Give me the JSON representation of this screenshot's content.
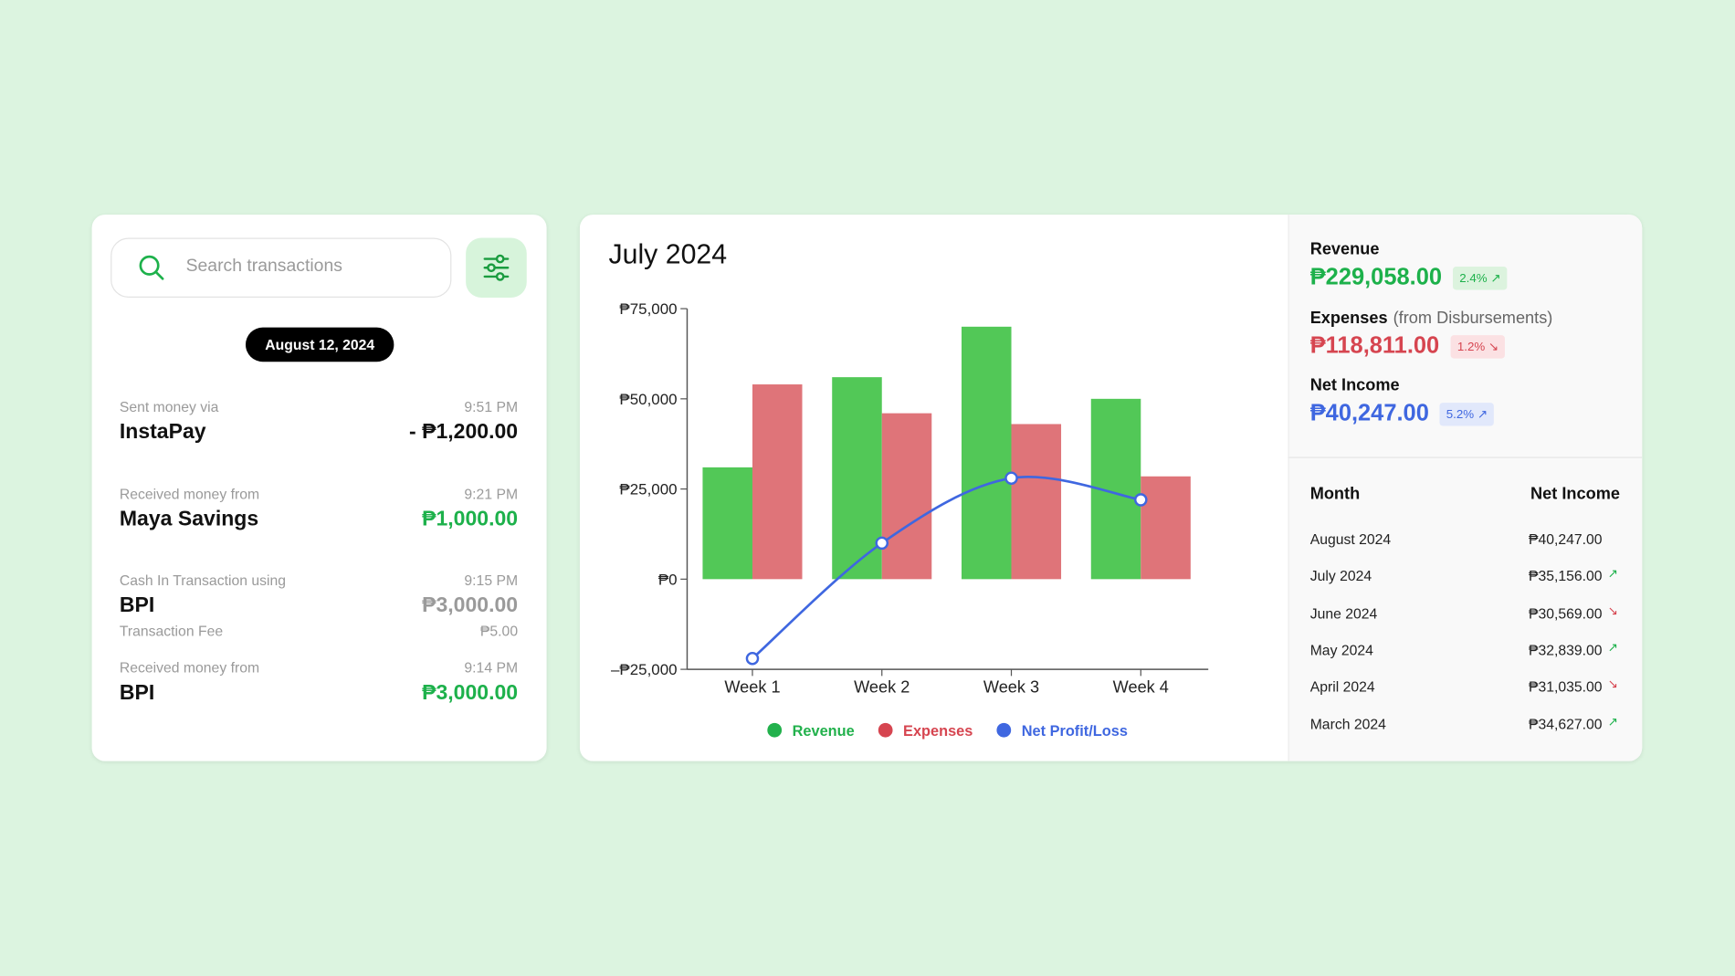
{
  "search": {
    "placeholder": "Search transactions"
  },
  "date": "August 12, 2024",
  "transactions": [
    {
      "label": "Sent money via",
      "time": "9:51 PM",
      "name": "InstaPay",
      "amount": "- ₱1,200.00",
      "color": "#111111"
    },
    {
      "label": "Received money from",
      "time": "9:21 PM",
      "name": "Maya Savings",
      "amount": "₱1,000.00",
      "color": "#1db14b"
    },
    {
      "label": "Cash In Transaction using",
      "time": "9:15 PM",
      "name": "BPI",
      "amount": "₱3,000.00",
      "color": "#9a9a9a",
      "fee_label": "Transaction Fee",
      "fee": "₱5.00"
    },
    {
      "label": "Received money from",
      "time": "9:14 PM",
      "name": "BPI",
      "amount": "₱3,000.00",
      "color": "#1db14b"
    }
  ],
  "chart_data": {
    "type": "bar",
    "title": "July 2024",
    "categories": [
      "Week 1",
      "Week 2",
      "Week 3",
      "Week 4"
    ],
    "series": [
      {
        "name": "Revenue",
        "color": "#52c857",
        "legend_color": "#22b14c",
        "values": [
          31000,
          56000,
          70000,
          50000
        ]
      },
      {
        "name": "Expenses",
        "color": "#df7479",
        "legend_color": "#d64550",
        "values": [
          54000,
          46000,
          43000,
          28500
        ]
      },
      {
        "name": "Net Profit/Loss",
        "type": "line",
        "color": "#3f67e0",
        "legend_color": "#3f67e0",
        "values": [
          -22000,
          10000,
          28000,
          22000
        ]
      }
    ],
    "ylim": [
      -25000,
      75000
    ],
    "yticks": [
      {
        "value": -25000,
        "label": "–₱25,000"
      },
      {
        "value": 0,
        "label": "₱0"
      },
      {
        "value": 25000,
        "label": "₱25,000"
      },
      {
        "value": 50000,
        "label": "₱50,000"
      },
      {
        "value": 75000,
        "label": "₱75,000"
      }
    ],
    "grid": false
  },
  "summary": [
    {
      "label": "Revenue",
      "value": "₱229,058.00",
      "change": "2.4% ↗",
      "color": "#1db14b",
      "chip": "#dcf3de"
    },
    {
      "label": "Expenses",
      "note": "(from Disbursements)",
      "value": "₱118,811.00",
      "change": "1.2% ↘",
      "color": "#d64550",
      "chip": "#fbe1e3"
    },
    {
      "label": "Net Income",
      "value": "₱40,247.00",
      "change": "5.2% ↗",
      "color": "#3f67e0",
      "chip": "#e1e8fb"
    }
  ],
  "table": {
    "header": [
      "Month",
      "Net Income"
    ],
    "rows": [
      [
        "August 2024",
        "₱40,247.00",
        ""
      ],
      [
        "July 2024",
        "₱35,156.00",
        "↗"
      ],
      [
        "June 2024",
        "₱30,569.00",
        "↘"
      ],
      [
        "May 2024",
        "₱32,839.00",
        "↗"
      ],
      [
        "April 2024",
        "₱31,035.00",
        "↘"
      ],
      [
        "March 2024",
        "₱34,627.00",
        "↗"
      ]
    ]
  }
}
